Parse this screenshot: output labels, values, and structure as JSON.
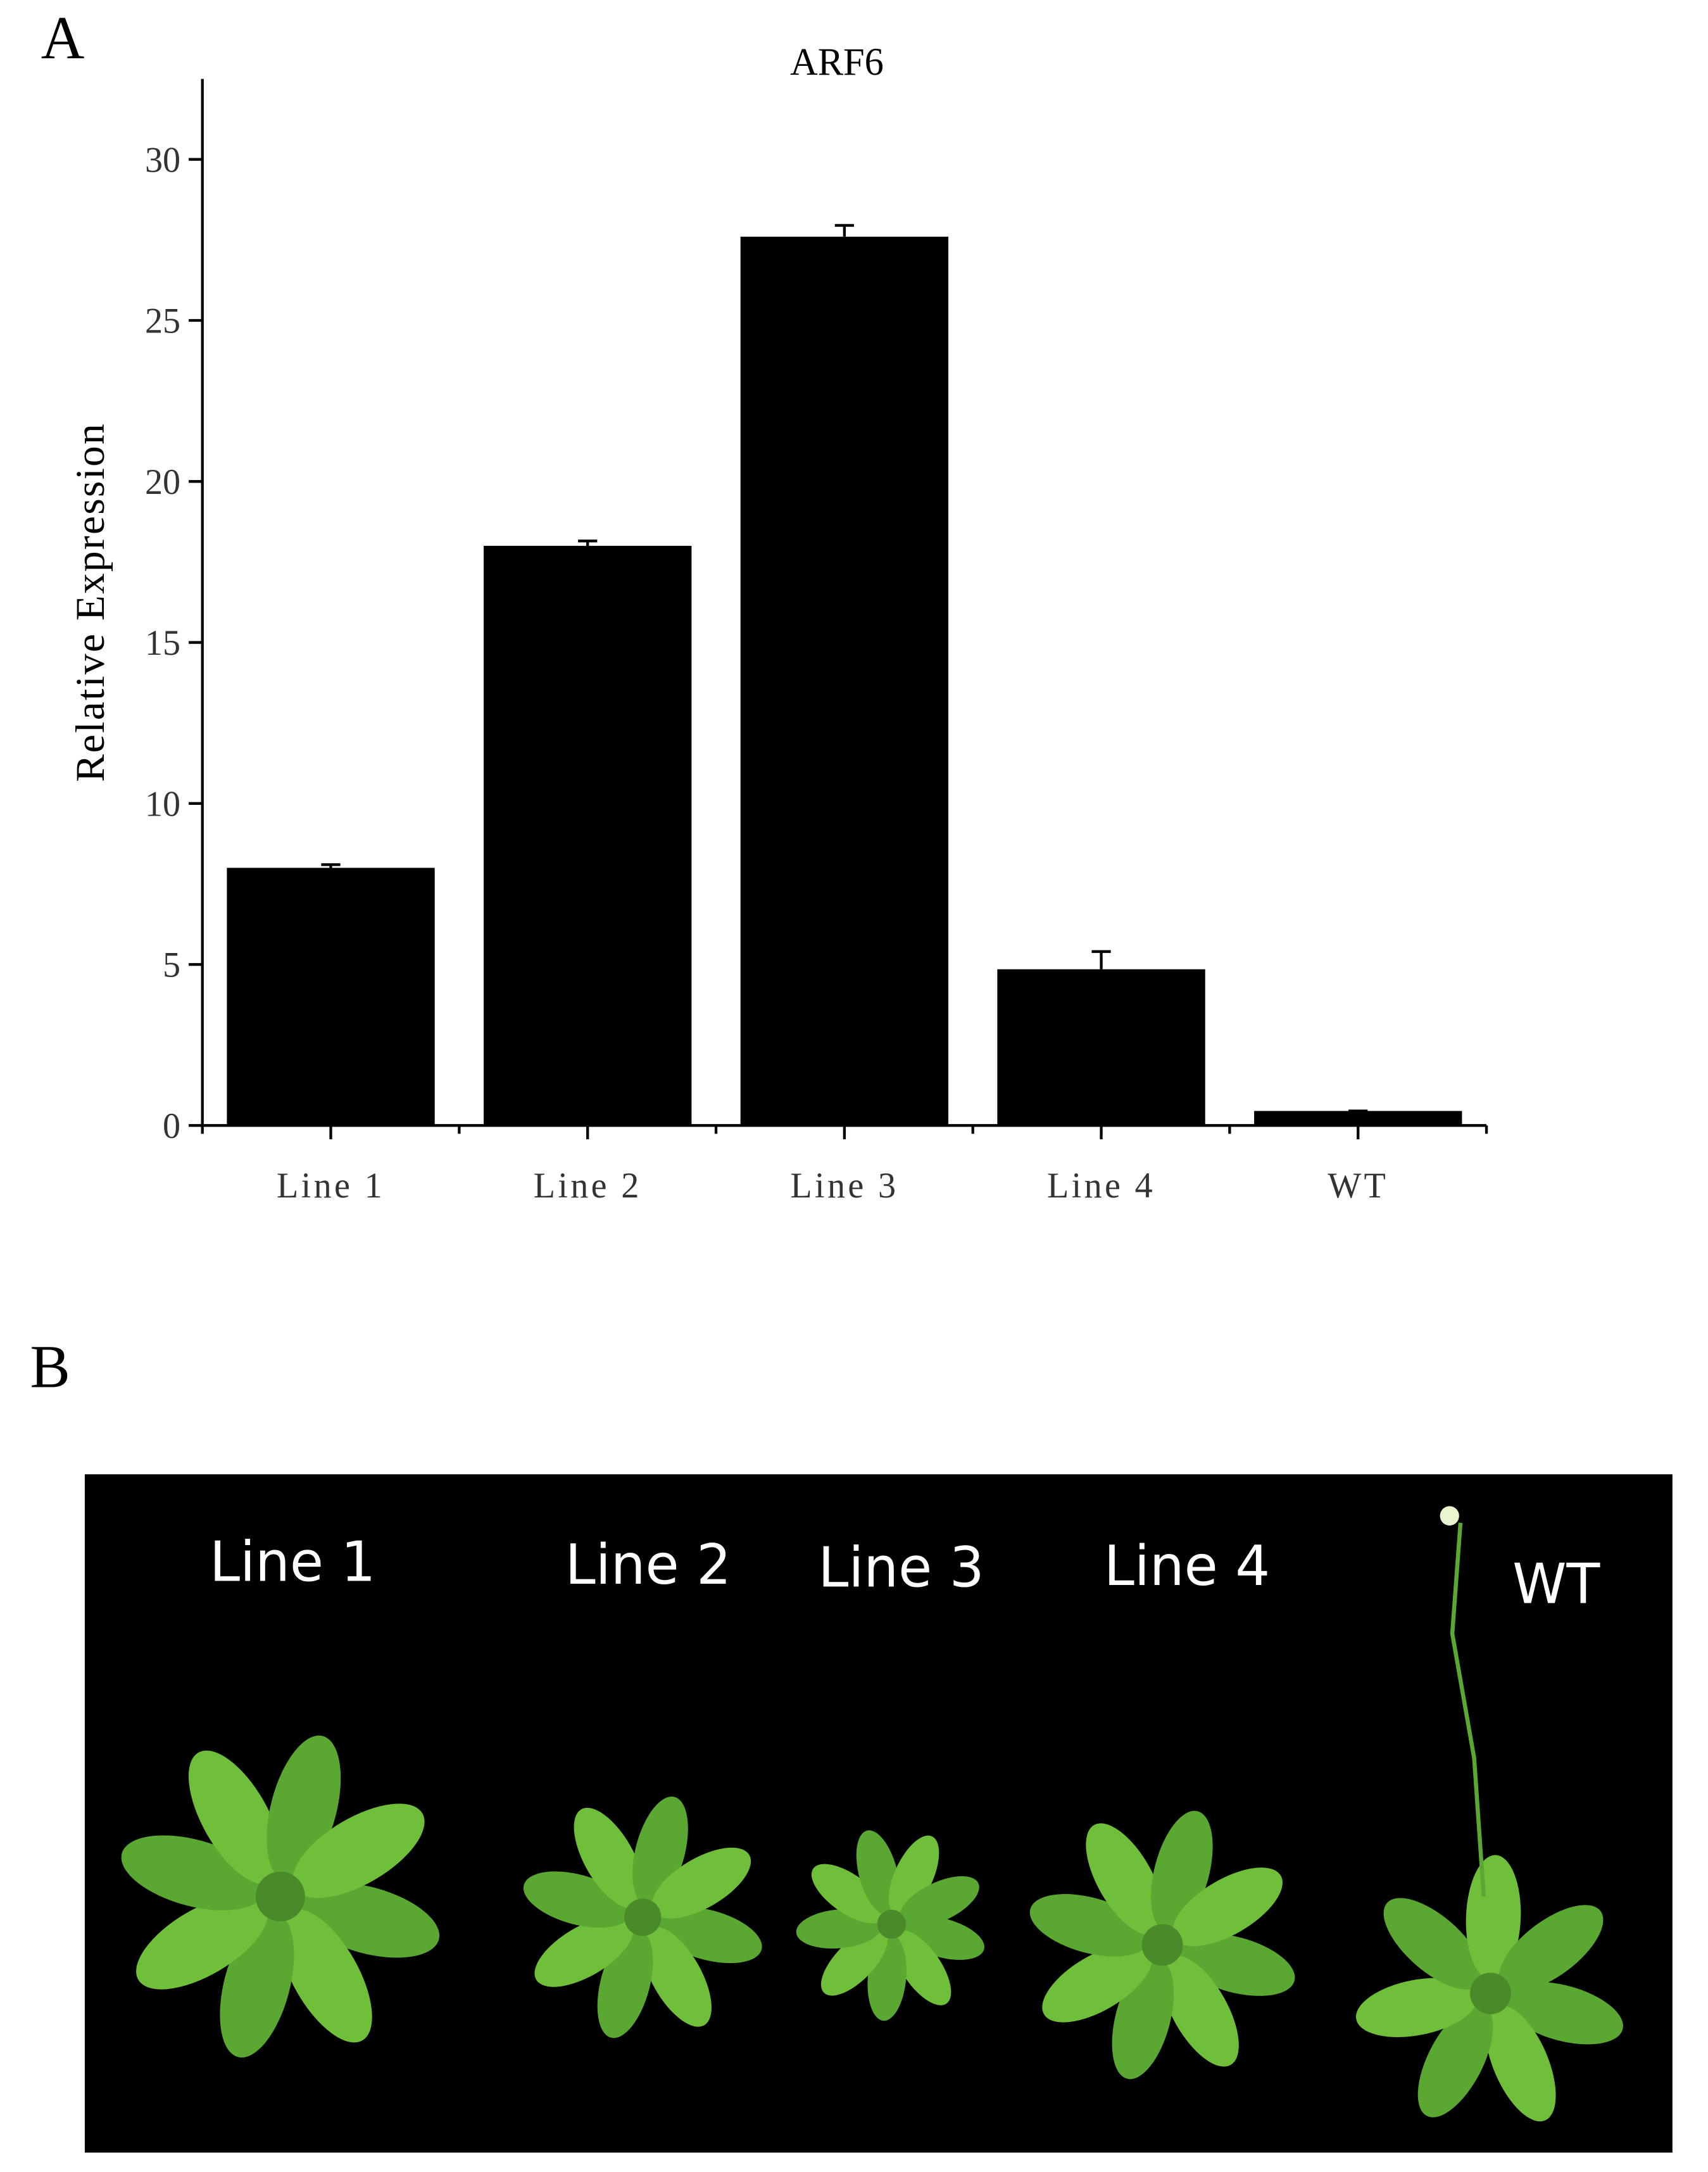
{
  "panels": {
    "a_label": "A",
    "b_label": "B"
  },
  "chart_data": {
    "type": "bar",
    "title": "ARF6",
    "y_label": "Relative Expression",
    "categories": [
      "Line 1",
      "Line 2",
      "Line 3",
      "Line 4",
      "WT"
    ],
    "values": [
      8.0,
      18.0,
      27.6,
      4.85,
      0.45
    ],
    "errors": [
      0.1,
      0.15,
      0.35,
      0.55,
      0.0
    ],
    "color": "#000000",
    "ylim": [
      0,
      32.5
    ],
    "yticks": [
      0,
      5,
      10,
      15,
      20,
      25,
      30
    ]
  },
  "photo": {
    "labels": [
      "Line 1",
      "Line 2",
      "Line 3",
      "Line 4",
      "WT"
    ]
  }
}
